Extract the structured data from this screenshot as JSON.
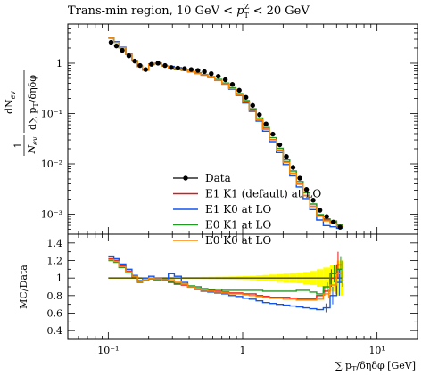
{
  "chart_data": [
    {
      "type": "line",
      "panel": "main",
      "title": "Trans-min region, 10 GeV < p_T^Z < 20 GeV",
      "title_parts": {
        "prefix": "Trans-min region, 10 GeV < ",
        "var": "p",
        "sub": "T",
        "sup": "Z",
        "suffix": " < 20 GeV"
      },
      "ylabel_lines": [
        "1",
        "N_ev dN_ev / d∑p_T/δηδφ"
      ],
      "ylabel_num": "dN",
      "ylabel_num_sub": "ev",
      "ylabel_den": "d∑ p",
      "ylabel_den_sub": "T",
      "ylabel_den_tail": "/δηδφ",
      "ylabel_pre_num": "1",
      "ylabel_pre_den": "N",
      "ylabel_pre_den_sub": "ev",
      "xscale": "log",
      "yscale": "log",
      "xlim": [
        0.05,
        20
      ],
      "ylim": [
        0.0004,
        6
      ],
      "ytick_labels": [
        {
          "value": 1,
          "label": "1"
        },
        {
          "value": 0.1,
          "label": "10⁻¹"
        },
        {
          "value": 0.01,
          "label": "10⁻²"
        },
        {
          "value": 0.001,
          "label": "10⁻³"
        }
      ],
      "bin_edges": [
        0.1,
        0.11,
        0.12,
        0.135,
        0.15,
        0.165,
        0.18,
        0.2,
        0.22,
        0.25,
        0.28,
        0.31,
        0.35,
        0.39,
        0.44,
        0.49,
        0.55,
        0.62,
        0.7,
        0.79,
        0.89,
        1.0,
        1.12,
        1.26,
        1.41,
        1.58,
        1.78,
        2.0,
        2.24,
        2.51,
        2.82,
        3.16,
        3.55,
        3.98,
        4.47,
        5.01,
        5.62
      ],
      "data": [
        2.6,
        2.2,
        1.8,
        1.4,
        1.1,
        0.9,
        0.75,
        0.95,
        1.0,
        0.9,
        0.82,
        0.8,
        0.78,
        0.75,
        0.72,
        0.68,
        0.62,
        0.55,
        0.47,
        0.38,
        0.29,
        0.21,
        0.145,
        0.095,
        0.062,
        0.039,
        0.024,
        0.014,
        0.0085,
        0.0052,
        0.0031,
        0.0019,
        0.0012,
        0.0009,
        0.0007,
        0.00055
      ],
      "legend_position": "bottom-left",
      "series": [
        {
          "name": "Data",
          "color": "#000000",
          "style": "points"
        },
        {
          "name": "E1 K1 (default) at LO",
          "color": "#ee1111",
          "style": "step",
          "ratio": [
            1.22,
            1.2,
            1.14,
            1.08,
            1.02,
            0.96,
            0.98,
            1.0,
            0.98,
            0.97,
            0.95,
            0.93,
            0.92,
            0.9,
            0.88,
            0.86,
            0.86,
            0.85,
            0.84,
            0.83,
            0.83,
            0.82,
            0.82,
            0.8,
            0.79,
            0.78,
            0.78,
            0.78,
            0.77,
            0.76,
            0.76,
            0.76,
            0.8,
            0.85,
            1.0,
            1.15
          ]
        },
        {
          "name": "E1 K0 at LO",
          "color": "#1155ee",
          "style": "step",
          "ratio": [
            1.25,
            1.22,
            1.16,
            1.1,
            1.03,
            0.97,
            1.0,
            1.02,
            1.0,
            0.98,
            1.05,
            1.02,
            0.95,
            0.9,
            0.87,
            0.85,
            0.84,
            0.83,
            0.82,
            0.8,
            0.79,
            0.77,
            0.76,
            0.74,
            0.72,
            0.71,
            0.7,
            0.69,
            0.68,
            0.67,
            0.66,
            0.65,
            0.64,
            0.66,
            0.8,
            0.95
          ]
        },
        {
          "name": "E0 K1 at LO",
          "color": "#229922",
          "style": "step",
          "ratio": [
            1.2,
            1.18,
            1.12,
            1.06,
            1.01,
            0.95,
            0.97,
            0.99,
            0.98,
            0.97,
            0.96,
            0.94,
            0.93,
            0.91,
            0.9,
            0.88,
            0.87,
            0.87,
            0.86,
            0.86,
            0.86,
            0.86,
            0.86,
            0.86,
            0.85,
            0.85,
            0.85,
            0.85,
            0.85,
            0.86,
            0.86,
            0.84,
            0.82,
            0.9,
            1.05,
            1.1
          ]
        },
        {
          "name": "E0 K0 at LO",
          "color": "#ff8800",
          "style": "step",
          "ratio": [
            1.21,
            1.19,
            1.13,
            1.07,
            1.02,
            0.96,
            0.98,
            1.0,
            0.99,
            0.97,
            0.98,
            0.96,
            0.93,
            0.9,
            0.88,
            0.86,
            0.85,
            0.84,
            0.83,
            0.82,
            0.82,
            0.81,
            0.8,
            0.79,
            0.78,
            0.77,
            0.77,
            0.76,
            0.76,
            0.75,
            0.75,
            0.75,
            0.76,
            0.82,
            0.92,
            1.05
          ]
        }
      ]
    },
    {
      "type": "line",
      "panel": "ratio",
      "ylabel": "MC/Data",
      "xlabel": "∑ p_T/δηδφ [GeV]",
      "xlabel_parts": {
        "prefix": "∑ p",
        "sub": "T",
        "suffix": "/δηδφ [GeV]"
      },
      "xscale": "log",
      "xlim": [
        0.05,
        20
      ],
      "ylim": [
        0.3,
        1.5
      ],
      "yticks": [
        {
          "value": 0.4,
          "label": "0.4"
        },
        {
          "value": 0.6,
          "label": "0.6"
        },
        {
          "value": 0.8,
          "label": "0.8"
        },
        {
          "value": 1.0,
          "label": "1"
        },
        {
          "value": 1.2,
          "label": "1.2"
        },
        {
          "value": 1.4,
          "label": "1.4"
        }
      ],
      "xticks": [
        {
          "value": 0.1,
          "label": "10⁻¹"
        },
        {
          "value": 1,
          "label": "1"
        },
        {
          "value": 10,
          "label": "10¹"
        }
      ],
      "band_color": "#ffff00",
      "band_halfwidth": [
        0.01,
        0.01,
        0.01,
        0.01,
        0.01,
        0.01,
        0.01,
        0.01,
        0.01,
        0.01,
        0.01,
        0.01,
        0.012,
        0.012,
        0.012,
        0.013,
        0.014,
        0.015,
        0.016,
        0.018,
        0.02,
        0.022,
        0.025,
        0.03,
        0.035,
        0.04,
        0.045,
        0.05,
        0.055,
        0.06,
        0.07,
        0.08,
        0.1,
        0.12,
        0.15,
        0.2
      ]
    }
  ]
}
